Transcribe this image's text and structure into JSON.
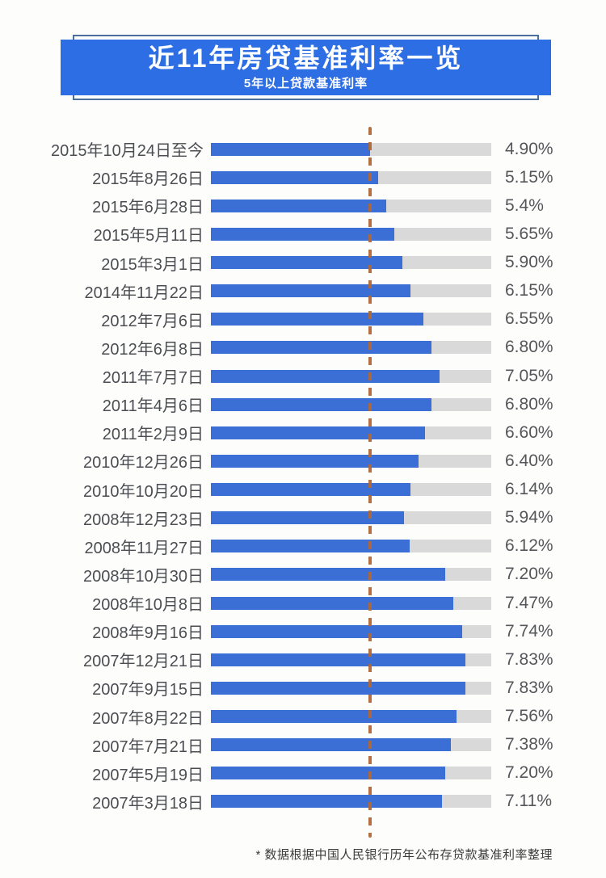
{
  "header": {
    "title": "近11年房贷基准利率一览",
    "subtitle": "5年以上贷款基准利率"
  },
  "footer": {
    "note": "* 数据根据中国人民银行历年公布存贷款基准利率整理"
  },
  "colors": {
    "header_bg": "#2e6ee4",
    "header_outline": "#4a6f9e",
    "bar": "#3b6fd6",
    "track": "#d9d9d9",
    "marker": "#b06838",
    "label": "#4b4d52",
    "value": "#55565a"
  },
  "chart_data": {
    "type": "bar",
    "orientation": "horizontal",
    "title": "近11年房贷基准利率一览",
    "subtitle": "5年以上贷款基准利率",
    "unit": "%",
    "axis_max": 8.63,
    "grid": false,
    "legend": false,
    "marker_value": 4.9,
    "marker_meaning": "当前利率参考虚线 (dashed vertical reference line at current rate)",
    "categories": [
      "2015年10月24日至今",
      "2015年8月26日",
      "2015年6月28日",
      "2015年5月11日",
      "2015年3月1日",
      "2014年11月22日",
      "2012年7月6日",
      "2012年6月8日",
      "2011年7月7日",
      "2011年4月6日",
      "2011年2月9日",
      "2010年12月26日",
      "2010年10月20日",
      "2008年12月23日",
      "2008年11月27日",
      "2008年10月30日",
      "2008年10月8日",
      "2008年9月16日",
      "2007年12月21日",
      "2007年9月15日",
      "2007年8月22日",
      "2007年7月21日",
      "2007年5月19日",
      "2007年3月18日"
    ],
    "values": [
      4.9,
      5.15,
      5.4,
      5.65,
      5.9,
      6.15,
      6.55,
      6.8,
      7.05,
      6.8,
      6.6,
      6.4,
      6.14,
      5.94,
      6.12,
      7.2,
      7.47,
      7.74,
      7.83,
      7.83,
      7.56,
      7.38,
      7.2,
      7.11
    ],
    "value_labels": [
      "4.90%",
      "5.15%",
      "5.4%",
      "5.65%",
      "5.90%",
      "6.15%",
      "6.55%",
      "6.80%",
      "7.05%",
      "6.80%",
      "6.60%",
      "6.40%",
      "6.14%",
      "5.94%",
      "6.12%",
      "7.20%",
      "7.47%",
      "7.74%",
      "7.83%",
      "7.83%",
      "7.56%",
      "7.38%",
      "7.20%",
      "7.11%"
    ]
  }
}
